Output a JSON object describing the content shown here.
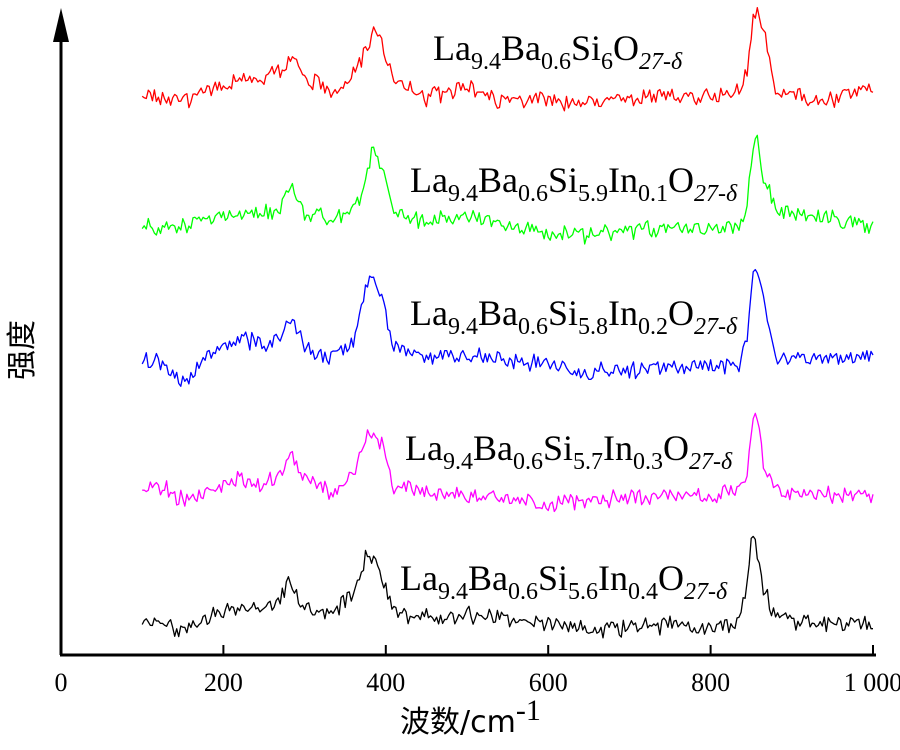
{
  "chart_data": {
    "type": "line",
    "xlabel_prefix": "波数/cm",
    "xlabel_sup": "-1",
    "ylabel": "强度",
    "xlim": [
      0,
      1000
    ],
    "x_ticks": [
      0,
      200,
      400,
      600,
      800,
      1000
    ],
    "x_tick_labels": [
      "0",
      "200",
      "400",
      "600",
      "800",
      "1 000"
    ],
    "grid": false,
    "y_tick_labels_shown": false,
    "series": [
      {
        "name": "La9.4Ba0.6Si6O27-δ",
        "label_parts": [
          [
            "La",
            ""
          ],
          [
            "9.4",
            "sub"
          ],
          [
            "Ba",
            ""
          ],
          [
            "0.6",
            "sub"
          ],
          [
            "Si",
            ""
          ],
          [
            "6",
            "sub"
          ],
          [
            "O",
            ""
          ],
          [
            "27-δ",
            "sub"
          ]
        ],
        "color": "#ff0000",
        "points": [
          [
            100,
            95
          ],
          [
            150,
            100
          ],
          [
            180,
            92
          ],
          [
            220,
            80
          ],
          [
            250,
            78
          ],
          [
            275,
            67
          ],
          [
            287,
            54
          ],
          [
            300,
            75
          ],
          [
            330,
            90
          ],
          [
            350,
            85
          ],
          [
            370,
            60
          ],
          [
            385,
            32
          ],
          [
            395,
            45
          ],
          [
            410,
            78
          ],
          [
            450,
            97
          ],
          [
            500,
            88
          ],
          [
            530,
            100
          ],
          [
            600,
            98
          ],
          [
            650,
            105
          ],
          [
            700,
            99
          ],
          [
            750,
            94
          ],
          [
            800,
            97
          ],
          [
            835,
            90
          ],
          [
            845,
            75
          ],
          [
            853,
            18
          ],
          [
            858,
            12
          ],
          [
            865,
            30
          ],
          [
            880,
            90
          ],
          [
            900,
            96
          ],
          [
            950,
            99
          ],
          [
            1000,
            88
          ]
        ]
      },
      {
        "name": "La9.4Ba0.6Si5.9In0.1O27-δ",
        "label_parts": [
          [
            "La",
            ""
          ],
          [
            "9.4",
            "sub"
          ],
          [
            "Ba",
            ""
          ],
          [
            "0.6",
            "sub"
          ],
          [
            "Si",
            ""
          ],
          [
            "5.9",
            "sub"
          ],
          [
            "In",
            ""
          ],
          [
            "0.1",
            "sub"
          ],
          [
            "O",
            ""
          ],
          [
            "27-δ",
            "sub"
          ]
        ],
        "color": "#00ff00",
        "points": [
          [
            100,
            228
          ],
          [
            150,
            225
          ],
          [
            200,
            215
          ],
          [
            250,
            212
          ],
          [
            270,
            208
          ],
          [
            285,
            188
          ],
          [
            300,
            212
          ],
          [
            340,
            220
          ],
          [
            370,
            200
          ],
          [
            383,
            150
          ],
          [
            395,
            162
          ],
          [
            410,
            210
          ],
          [
            450,
            222
          ],
          [
            500,
            215
          ],
          [
            550,
            225
          ],
          [
            600,
            232
          ],
          [
            650,
            235
          ],
          [
            700,
            230
          ],
          [
            750,
            228
          ],
          [
            800,
            230
          ],
          [
            835,
            225
          ],
          [
            845,
            205
          ],
          [
            852,
            145
          ],
          [
            858,
            140
          ],
          [
            865,
            175
          ],
          [
            880,
            210
          ],
          [
            900,
            215
          ],
          [
            950,
            220
          ],
          [
            1000,
            228
          ]
        ]
      },
      {
        "name": "La9.4Ba0.6Si5.8In0.2O27-δ",
        "label_parts": [
          [
            "La",
            ""
          ],
          [
            "9.4",
            "sub"
          ],
          [
            "Ba",
            ""
          ],
          [
            "0.6",
            "sub"
          ],
          [
            "Si",
            ""
          ],
          [
            "5.8",
            "sub"
          ],
          [
            "In",
            ""
          ],
          [
            "0.2",
            "sub"
          ],
          [
            "O",
            ""
          ],
          [
            "27-δ",
            "sub"
          ]
        ],
        "color": "#0000ff",
        "points": [
          [
            100,
            358
          ],
          [
            130,
            365
          ],
          [
            150,
            380
          ],
          [
            170,
            365
          ],
          [
            200,
            350
          ],
          [
            220,
            338
          ],
          [
            250,
            345
          ],
          [
            270,
            338
          ],
          [
            285,
            315
          ],
          [
            300,
            350
          ],
          [
            330,
            358
          ],
          [
            360,
            340
          ],
          [
            380,
            275
          ],
          [
            395,
            295
          ],
          [
            410,
            348
          ],
          [
            450,
            358
          ],
          [
            500,
            355
          ],
          [
            550,
            360
          ],
          [
            600,
            365
          ],
          [
            650,
            372
          ],
          [
            700,
            370
          ],
          [
            750,
            368
          ],
          [
            800,
            367
          ],
          [
            835,
            365
          ],
          [
            845,
            335
          ],
          [
            852,
            275
          ],
          [
            858,
            272
          ],
          [
            865,
            300
          ],
          [
            880,
            355
          ],
          [
            900,
            360
          ],
          [
            950,
            358
          ],
          [
            1000,
            358
          ]
        ]
      },
      {
        "name": "La9.4Ba0.6Si5.7In0.3O27-δ",
        "label_parts": [
          [
            "La",
            ""
          ],
          [
            "9.4",
            "sub"
          ],
          [
            "Ba",
            ""
          ],
          [
            "0.6",
            "sub"
          ],
          [
            "Si",
            ""
          ],
          [
            "5.7",
            "sub"
          ],
          [
            "In",
            ""
          ],
          [
            "0.3",
            "sub"
          ],
          [
            "O",
            ""
          ],
          [
            "27-δ",
            "sub"
          ]
        ],
        "color": "#ff00ff",
        "points": [
          [
            100,
            485
          ],
          [
            130,
            490
          ],
          [
            150,
            500
          ],
          [
            180,
            490
          ],
          [
            220,
            478
          ],
          [
            250,
            485
          ],
          [
            270,
            470
          ],
          [
            285,
            458
          ],
          [
            300,
            478
          ],
          [
            330,
            490
          ],
          [
            360,
            478
          ],
          [
            378,
            432
          ],
          [
            395,
            445
          ],
          [
            410,
            485
          ],
          [
            450,
            492
          ],
          [
            500,
            495
          ],
          [
            550,
            498
          ],
          [
            600,
            505
          ],
          [
            650,
            500
          ],
          [
            700,
            498
          ],
          [
            750,
            496
          ],
          [
            800,
            495
          ],
          [
            835,
            492
          ],
          [
            845,
            470
          ],
          [
            852,
            415
          ],
          [
            858,
            420
          ],
          [
            865,
            465
          ],
          [
            880,
            490
          ],
          [
            900,
            492
          ],
          [
            950,
            494
          ],
          [
            1000,
            494
          ]
        ]
      },
      {
        "name": "La9.4Ba0.6Si5.6In0.4O27-δ",
        "label_parts": [
          [
            "La",
            ""
          ],
          [
            "9.4",
            "sub"
          ],
          [
            "Ba",
            ""
          ],
          [
            "0.6",
            "sub"
          ],
          [
            "Si",
            ""
          ],
          [
            "5.6",
            "sub"
          ],
          [
            "In",
            ""
          ],
          [
            "0.4",
            "sub"
          ],
          [
            "O",
            ""
          ],
          [
            "27-δ",
            "sub"
          ]
        ],
        "color": "#000000",
        "points": [
          [
            100,
            620
          ],
          [
            130,
            625
          ],
          [
            150,
            632
          ],
          [
            180,
            615
          ],
          [
            220,
            605
          ],
          [
            250,
            612
          ],
          [
            270,
            600
          ],
          [
            280,
            578
          ],
          [
            295,
            605
          ],
          [
            330,
            615
          ],
          [
            360,
            595
          ],
          [
            378,
            552
          ],
          [
            392,
            568
          ],
          [
            410,
            612
          ],
          [
            450,
            618
          ],
          [
            500,
            615
          ],
          [
            550,
            620
          ],
          [
            600,
            625
          ],
          [
            650,
            630
          ],
          [
            700,
            628
          ],
          [
            750,
            625
          ],
          [
            800,
            628
          ],
          [
            835,
            622
          ],
          [
            845,
            590
          ],
          [
            850,
            538
          ],
          [
            856,
            545
          ],
          [
            865,
            590
          ],
          [
            880,
            618
          ],
          [
            900,
            622
          ],
          [
            950,
            624
          ],
          [
            1000,
            625
          ]
        ]
      }
    ]
  }
}
